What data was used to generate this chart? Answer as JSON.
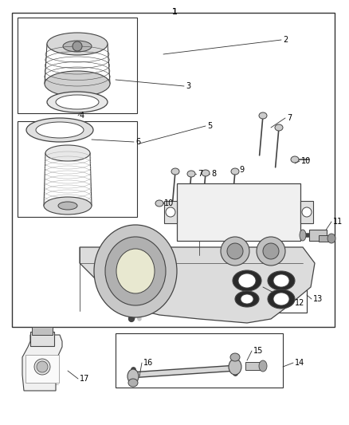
{
  "bg_color": "#ffffff",
  "border_color": "#333333",
  "label_color": "#000000",
  "fig_width": 4.38,
  "fig_height": 5.33,
  "dpi": 100,
  "gray": "#888888",
  "dgray": "#444444",
  "lgray": "#cccccc",
  "white": "#ffffff",
  "font_size": 7
}
